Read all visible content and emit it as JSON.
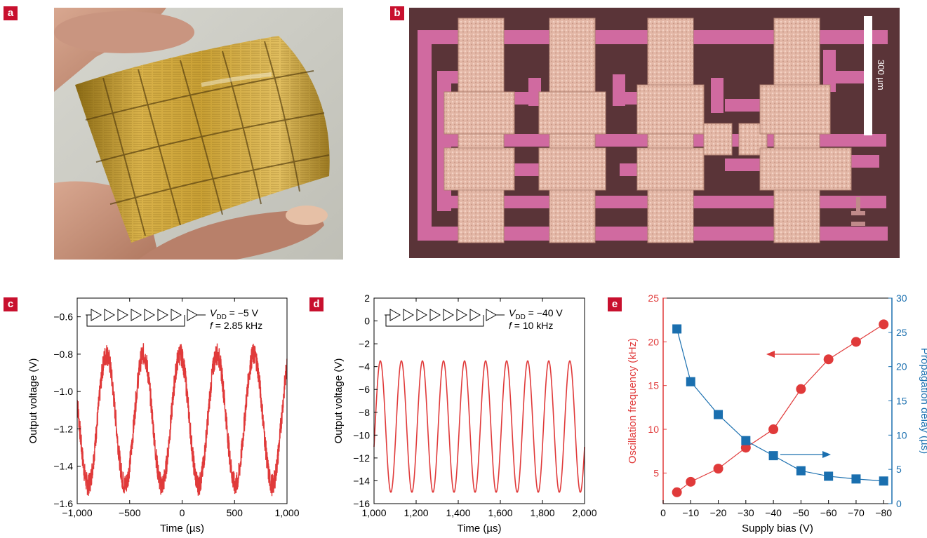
{
  "panels": {
    "a": {
      "label": "a"
    },
    "b": {
      "label": "b",
      "scale_bar": "300 µm"
    },
    "c": {
      "label": "c"
    },
    "d": {
      "label": "d"
    },
    "e": {
      "label": "e"
    }
  },
  "colors": {
    "red": "#e03a3a",
    "blue": "#1a6faf",
    "tag": "#c8102e"
  },
  "chart_data": [
    {
      "id": "c",
      "type": "line",
      "xlabel": "Time (µs)",
      "ylabel": "Output voltage (V)",
      "xlim": [
        -1000,
        1000
      ],
      "ylim": [
        -1.6,
        -0.5
      ],
      "xticks": [
        -1000,
        -500,
        0,
        500,
        1000
      ],
      "xtick_labels": [
        "−1,000",
        "−500",
        "0",
        "500",
        "1,000"
      ],
      "yticks": [
        -0.6,
        -0.8,
        -1.0,
        -1.2,
        -1.4,
        -1.6
      ],
      "ytick_labels": [
        "−0.6",
        "−0.8",
        "−1.0",
        "−1.2",
        "−1.4",
        "−1.6"
      ],
      "annotation": {
        "line1_prefix": "V",
        "line1_sub": "DD",
        "line1_rest": " = −5 V",
        "line2_var": "f",
        "line2_rest": " = 2.85 kHz"
      },
      "series": [
        {
          "frequency_khz": 2.85,
          "min": -1.5,
          "max": -0.8,
          "x_at_peak": -720
        }
      ]
    },
    {
      "id": "d",
      "type": "line",
      "xlabel": "Time (µs)",
      "ylabel": "Output voltage (V)",
      "xlim": [
        1000,
        2000
      ],
      "ylim": [
        -16,
        2
      ],
      "xticks": [
        1000,
        1200,
        1400,
        1600,
        1800,
        2000
      ],
      "xtick_labels": [
        "1,000",
        "1,200",
        "1,400",
        "1,600",
        "1,800",
        "2,000"
      ],
      "yticks": [
        2,
        0,
        -2,
        -4,
        -6,
        -8,
        -10,
        -12,
        -14,
        -16
      ],
      "ytick_labels": [
        "2",
        "0",
        "−2",
        "−4",
        "−6",
        "−8",
        "−10",
        "−12",
        "−14",
        "−16"
      ],
      "annotation": {
        "line1_prefix": "V",
        "line1_sub": "DD",
        "line1_rest": " = −40 V",
        "line2_var": "f",
        "line2_rest": " = 10 kHz"
      },
      "series": [
        {
          "frequency_khz": 10,
          "min": -15,
          "max": -3.5,
          "x_at_peak": 1030
        }
      ]
    },
    {
      "id": "e",
      "type": "line",
      "xlabel": "Supply bias (V)",
      "ylabel_left": "Oscillation frequency (kHz)",
      "ylabel_right": "Propagation delay (µs)",
      "x": [
        -5,
        -10,
        -20,
        -30,
        -40,
        -50,
        -60,
        -70,
        -80
      ],
      "xlim": [
        0,
        -83
      ],
      "xticks": [
        0,
        -10,
        -20,
        -30,
        -40,
        -50,
        -60,
        -70,
        -80
      ],
      "xtick_labels": [
        "0",
        "−10",
        "−20",
        "−30",
        "−40",
        "−50",
        "−60",
        "−70",
        "−80"
      ],
      "ylim_left": [
        1.5,
        25
      ],
      "yticks_left": [
        5,
        10,
        15,
        20,
        25
      ],
      "ylim_right": [
        0,
        30
      ],
      "yticks_right": [
        0,
        5,
        10,
        15,
        20,
        25,
        30
      ],
      "series": [
        {
          "axis": "left",
          "marker": "circle",
          "values": [
            2.8,
            4.0,
            5.5,
            7.9,
            10.0,
            14.6,
            18.0,
            20.0,
            22.0
          ]
        },
        {
          "axis": "right",
          "marker": "square",
          "values": [
            25.5,
            17.8,
            13.0,
            9.2,
            7.0,
            4.8,
            4.0,
            3.6,
            3.3
          ]
        }
      ]
    }
  ]
}
